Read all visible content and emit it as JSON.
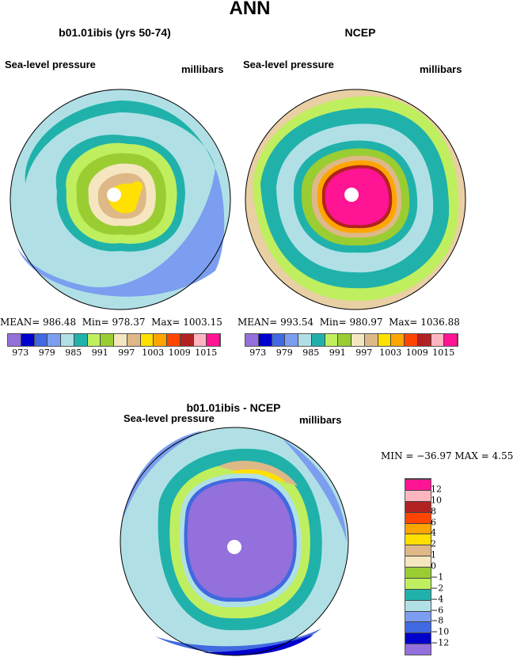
{
  "title": "ANN",
  "palette": [
    "#9370DB",
    "#0000CD",
    "#4169E1",
    "#7B9EF0",
    "#B0E0E6",
    "#20B2AA",
    "#BFEF5F",
    "#9ACD32",
    "#F5E6C0",
    "#DEB887",
    "#FFE000",
    "#FFA500",
    "#FF4500",
    "#B22222",
    "#FFB6C1",
    "#FF1493"
  ],
  "panels": [
    {
      "subtitle": "b01.01ibis (yrs 50-74)",
      "variable": "Sea-level pressure",
      "units": "millibars",
      "stats": {
        "mean_label": "MEAN=",
        "mean": "986.48",
        "min_label": "Min=",
        "min": "978.37",
        "max_label": "Max=",
        "max": "1003.15"
      }
    },
    {
      "subtitle": "NCEP",
      "variable": "Sea-level pressure",
      "units": "millibars",
      "stats": {
        "mean_label": "MEAN=",
        "mean": "993.54",
        "min_label": "Min=",
        "min": "980.97",
        "max_label": "Max=",
        "max": "1036.88"
      }
    }
  ],
  "colorbar_labels": [
    "973",
    "979",
    "985",
    "991",
    "997",
    "1003",
    "1009",
    "1015"
  ],
  "diff": {
    "subtitle": "b01.01ibis - NCEP",
    "variable": "Sea-level pressure",
    "units": "millibars",
    "stats_text": "MIN = −36.97 MAX =    4.55",
    "colorbar_labels": [
      "−12",
      "−10",
      "−8",
      "−6",
      "−4",
      "−2",
      "−1",
      "0",
      "1",
      "2",
      "4",
      "6",
      "8",
      "10",
      "12"
    ]
  }
}
